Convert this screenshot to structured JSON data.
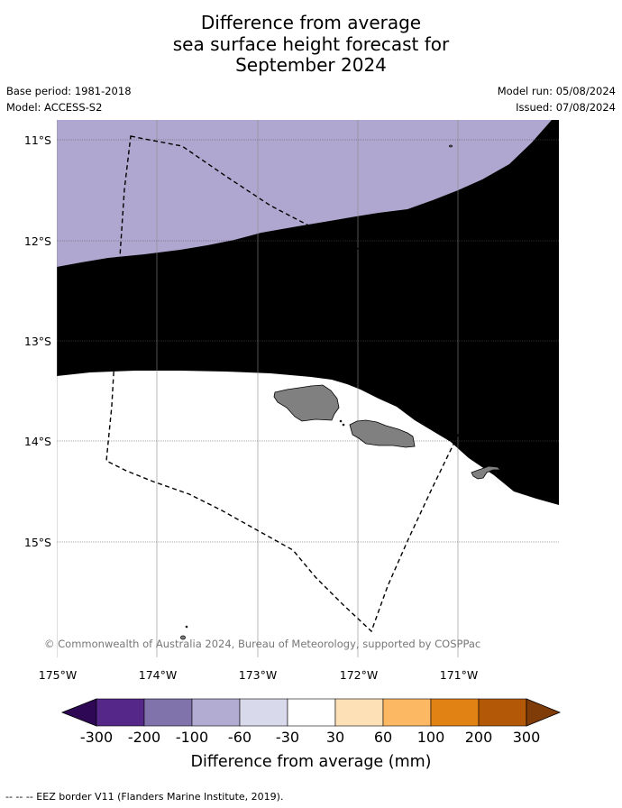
{
  "title": {
    "line1": "Difference from average",
    "line2": "sea surface height forecast for",
    "line3": "September 2024"
  },
  "meta": {
    "base_period": "Base period: 1981-2018",
    "model": "Model: ACCESS-S2",
    "model_run": "Model run: 05/08/2024",
    "issued": "Issued: 07/08/2024"
  },
  "map": {
    "lat_labels": [
      "11°S",
      "12°S",
      "13°S",
      "14°S",
      "15°S"
    ],
    "lon_labels": [
      "175°W",
      "174°W",
      "173°W",
      "172°W",
      "171°W"
    ],
    "copyright": "© Commonwealth of Australia 2024, Bureau of Meteorology, supported by COSPPac",
    "colors": {
      "band_minus60_minus30": "#afa7cf",
      "band_minus30_30": "#d8d8ea",
      "land": "#808080",
      "eez_border": "#000000"
    }
  },
  "colorbar": {
    "ticks": [
      "-300",
      "-200",
      "-100",
      "-60",
      "-30",
      "30",
      "60",
      "100",
      "200",
      "300"
    ],
    "label": "Difference from average (mm)",
    "under_color": "#2e0854",
    "over_color": "#7f3b08",
    "colors": [
      "#542788",
      "#8073ac",
      "#b2abd2",
      "#d8daeb",
      "#ffffff",
      "#fee0b6",
      "#fdb863",
      "#e08214",
      "#b35806"
    ]
  },
  "footer": {
    "legend_text": "--  --  -- EEZ border V11 (Flanders Marine Institute, 2019)."
  }
}
